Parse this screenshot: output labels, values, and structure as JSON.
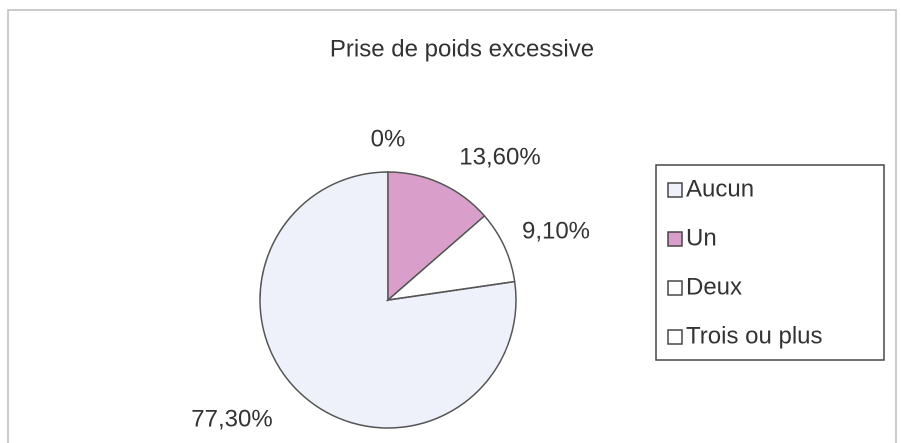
{
  "chart_data": {
    "type": "pie",
    "title": "Prise de poids excessive",
    "categories": [
      "Aucun",
      "Un",
      "Deux",
      "Trois ou plus"
    ],
    "values": [
      77.3,
      13.6,
      9.1,
      0
    ],
    "value_labels": [
      "77,30%",
      "13,60%",
      "9,10%",
      "0%"
    ],
    "colors": [
      "#eef0fa",
      "#d99fca",
      "#ffffff",
      "#ffffff"
    ],
    "legend": "right"
  }
}
